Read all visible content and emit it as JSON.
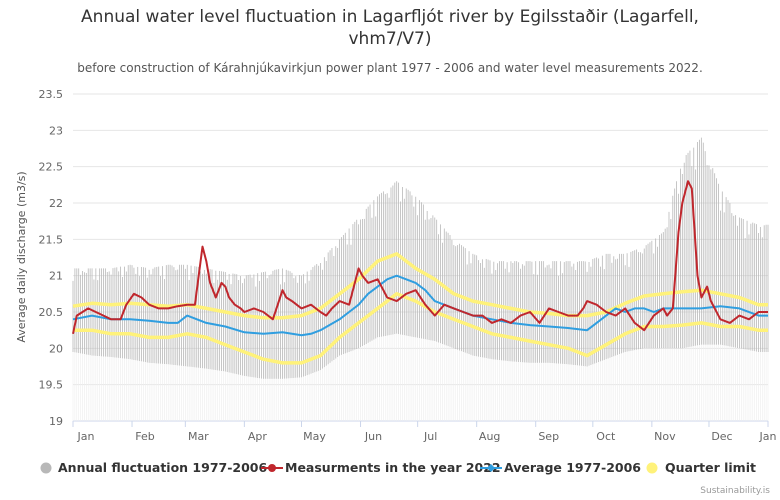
{
  "title": "Annual water level fluctuation in Lagarfljót river by Egilsstaðir (Lagarfell, vhm7/V7)",
  "subtitle": "before construction of Kárahnjúkavirkjun power plant 1977 - 2006 and water level measurements 2022.",
  "credit": "Sustainability.is",
  "chart_data": {
    "type": "line",
    "ylabel": "Average daily discharge (m3/s)",
    "ylim": [
      19,
      23.5
    ],
    "yticks": [
      "19",
      "19.5",
      "20",
      "20.5",
      "21",
      "21.5",
      "22",
      "22.5",
      "23",
      "23.5"
    ],
    "xlim": [
      0,
      365
    ],
    "months": [
      "Jan",
      "Feb",
      "Mar",
      "Apr",
      "May",
      "Jun",
      "Jul",
      "Aug",
      "Sep",
      "Oct",
      "Nov",
      "Dec",
      "Jan"
    ],
    "month_days": [
      0,
      31,
      59,
      90,
      120,
      151,
      181,
      212,
      243,
      273,
      304,
      334,
      365
    ],
    "grid": true,
    "legend_position": "bottom",
    "colors": {
      "fluctuation": "#b8b8b8",
      "measurements": "#c0272d",
      "average": "#2f9ee0",
      "quarter": "#fff27a"
    },
    "series": [
      {
        "name": "Annual fluctuation 1977-2006",
        "kind": "range",
        "x": [
          0,
          10,
          20,
          30,
          40,
          50,
          60,
          70,
          80,
          90,
          100,
          110,
          120,
          130,
          140,
          150,
          160,
          170,
          180,
          190,
          200,
          210,
          220,
          230,
          240,
          250,
          260,
          270,
          280,
          290,
          300,
          310,
          320,
          330,
          340,
          350,
          360,
          365
        ],
        "low": [
          19.95,
          19.9,
          19.88,
          19.85,
          19.8,
          19.78,
          19.75,
          19.72,
          19.68,
          19.62,
          19.58,
          19.58,
          19.6,
          19.7,
          19.9,
          20.0,
          20.15,
          20.2,
          20.15,
          20.1,
          20.0,
          19.9,
          19.85,
          19.82,
          19.8,
          19.8,
          19.78,
          19.75,
          19.85,
          19.95,
          20.0,
          20.0,
          20.0,
          20.05,
          20.05,
          20.0,
          19.95,
          19.95
        ],
        "high": [
          21.1,
          21.1,
          21.1,
          21.15,
          21.1,
          21.15,
          21.15,
          21.1,
          21.05,
          21.0,
          21.05,
          21.1,
          21.0,
          21.2,
          21.5,
          21.8,
          22.1,
          22.3,
          22.1,
          21.8,
          21.5,
          21.3,
          21.2,
          21.2,
          21.2,
          21.2,
          21.2,
          21.2,
          21.3,
          21.3,
          21.4,
          21.6,
          22.6,
          22.9,
          22.2,
          21.8,
          21.7,
          21.7
        ]
      },
      {
        "name": "Measurments in the year 2022",
        "kind": "line",
        "x": [
          0,
          2,
          5,
          8,
          12,
          16,
          20,
          25,
          28,
          32,
          36,
          40,
          45,
          50,
          55,
          60,
          64,
          68,
          70,
          72,
          75,
          78,
          80,
          82,
          85,
          88,
          90,
          95,
          100,
          105,
          110,
          112,
          115,
          120,
          125,
          130,
          133,
          136,
          140,
          145,
          150,
          152,
          155,
          160,
          165,
          170,
          175,
          180,
          185,
          190,
          195,
          200,
          205,
          210,
          215,
          220,
          225,
          230,
          235,
          240,
          245,
          250,
          255,
          260,
          265,
          268,
          270,
          275,
          280,
          285,
          290,
          295,
          300,
          305,
          310,
          312,
          315,
          318,
          320,
          323,
          325,
          328,
          330,
          333,
          335,
          340,
          345,
          350,
          355,
          360,
          365
        ],
        "y": [
          20.2,
          20.45,
          20.5,
          20.55,
          20.5,
          20.45,
          20.4,
          20.4,
          20.6,
          20.75,
          20.7,
          20.6,
          20.55,
          20.55,
          20.58,
          20.6,
          20.6,
          21.4,
          21.2,
          20.9,
          20.7,
          20.9,
          20.85,
          20.7,
          20.6,
          20.55,
          20.5,
          20.55,
          20.5,
          20.4,
          20.8,
          20.7,
          20.65,
          20.55,
          20.6,
          20.5,
          20.45,
          20.55,
          20.65,
          20.6,
          21.1,
          21.0,
          20.9,
          20.95,
          20.7,
          20.65,
          20.75,
          20.8,
          20.6,
          20.45,
          20.6,
          20.55,
          20.5,
          20.45,
          20.45,
          20.35,
          20.4,
          20.35,
          20.45,
          20.5,
          20.35,
          20.55,
          20.5,
          20.45,
          20.45,
          20.55,
          20.65,
          20.6,
          20.5,
          20.45,
          20.55,
          20.35,
          20.25,
          20.45,
          20.55,
          20.45,
          20.55,
          21.6,
          22.0,
          22.3,
          22.2,
          21.0,
          20.7,
          20.85,
          20.65,
          20.4,
          20.35,
          20.45,
          20.4,
          20.5,
          20.5
        ]
      },
      {
        "name": "Average 1977-2006",
        "kind": "line",
        "x": [
          0,
          10,
          20,
          30,
          40,
          50,
          55,
          60,
          70,
          80,
          90,
          100,
          110,
          120,
          125,
          130,
          140,
          145,
          150,
          155,
          160,
          165,
          170,
          175,
          180,
          185,
          190,
          200,
          210,
          220,
          230,
          240,
          250,
          260,
          270,
          275,
          280,
          285,
          290,
          295,
          300,
          305,
          310,
          320,
          330,
          340,
          350,
          360,
          365
        ],
        "y": [
          20.4,
          20.45,
          20.4,
          20.4,
          20.38,
          20.35,
          20.35,
          20.45,
          20.35,
          20.3,
          20.22,
          20.2,
          20.22,
          20.18,
          20.2,
          20.25,
          20.4,
          20.5,
          20.6,
          20.75,
          20.85,
          20.95,
          21.0,
          20.95,
          20.9,
          20.8,
          20.65,
          20.55,
          20.45,
          20.4,
          20.35,
          20.32,
          20.3,
          20.28,
          20.25,
          20.35,
          20.45,
          20.55,
          20.5,
          20.55,
          20.55,
          20.5,
          20.55,
          20.55,
          20.55,
          20.58,
          20.55,
          20.45,
          20.45
        ]
      },
      {
        "name": "Quarter limit",
        "kind": "band",
        "x": [
          0,
          10,
          20,
          30,
          40,
          50,
          60,
          70,
          80,
          90,
          100,
          110,
          120,
          130,
          140,
          150,
          160,
          170,
          180,
          190,
          200,
          210,
          220,
          230,
          240,
          250,
          260,
          270,
          280,
          290,
          300,
          310,
          320,
          330,
          340,
          350,
          360,
          365
        ],
        "upper": [
          20.58,
          20.62,
          20.6,
          20.62,
          20.6,
          20.58,
          20.6,
          20.55,
          20.5,
          20.45,
          20.42,
          20.42,
          20.45,
          20.55,
          20.75,
          20.95,
          21.2,
          21.3,
          21.1,
          20.95,
          20.75,
          20.65,
          20.6,
          20.55,
          20.5,
          20.48,
          20.45,
          20.45,
          20.5,
          20.62,
          20.72,
          20.75,
          20.78,
          20.8,
          20.75,
          20.7,
          20.6,
          20.6
        ],
        "lower": [
          20.25,
          20.25,
          20.2,
          20.2,
          20.15,
          20.15,
          20.2,
          20.15,
          20.05,
          19.95,
          19.85,
          19.8,
          19.8,
          19.9,
          20.15,
          20.35,
          20.55,
          20.75,
          20.65,
          20.5,
          20.4,
          20.3,
          20.2,
          20.15,
          20.1,
          20.05,
          20.0,
          19.9,
          20.05,
          20.2,
          20.3,
          20.3,
          20.32,
          20.35,
          20.3,
          20.3,
          20.25,
          20.25
        ]
      }
    ]
  }
}
